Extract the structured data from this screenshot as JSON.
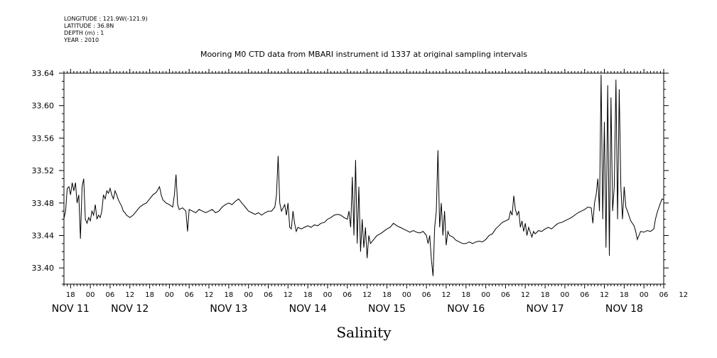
{
  "header": {
    "longitude": "LONGITUDE : 121.9W(-121.9)",
    "latitude": "LATITUDE : 36.8N",
    "depth": "DEPTH (m) : 1",
    "year": "YEAR : 2010"
  },
  "chart_data": {
    "type": "line",
    "title": "Mooring M0 CTD data from MBARI instrument id 1337 at original sampling intervals",
    "xlabel": "Salinity",
    "ylabel": "",
    "xlim_hours": [
      -8,
      174
    ],
    "ylim": [
      33.38,
      33.64
    ],
    "y_ticks": [
      "33.40",
      "33.44",
      "33.48",
      "33.52",
      "33.56",
      "33.60",
      "33.64"
    ],
    "x_hour_labels": [
      "18",
      "00",
      "06",
      "12",
      "18",
      "00",
      "06",
      "12",
      "18",
      "00",
      "06",
      "12",
      "18",
      "00",
      "06",
      "12",
      "18",
      "00",
      "06",
      "12",
      "18",
      "00",
      "06",
      "12",
      "18",
      "00",
      "06",
      "12",
      "18",
      "00",
      "06",
      "12"
    ],
    "x_day_labels": [
      {
        "label": "NOV 11",
        "hour": -6
      },
      {
        "label": "NOV 12",
        "hour": 12
      },
      {
        "label": "NOV 13",
        "hour": 42
      },
      {
        "label": "NOV 14",
        "hour": 66
      },
      {
        "label": "NOV 15",
        "hour": 90
      },
      {
        "label": "NOV 16",
        "hour": 114
      },
      {
        "label": "NOV 17",
        "hour": 138
      },
      {
        "label": "NOV 18",
        "hour": 162
      }
    ],
    "grid": false,
    "series": [
      {
        "x_unit": "hours since Nov 12 00:00",
        "points": [
          [
            -8,
            33.461
          ],
          [
            -7.5,
            33.47
          ],
          [
            -7,
            33.498
          ],
          [
            -6.5,
            33.5
          ],
          [
            -6,
            33.49
          ],
          [
            -5.5,
            33.505
          ],
          [
            -5,
            33.495
          ],
          [
            -4.5,
            33.505
          ],
          [
            -4,
            33.48
          ],
          [
            -3.5,
            33.49
          ],
          [
            -3,
            33.436
          ],
          [
            -2.5,
            33.5
          ],
          [
            -2,
            33.51
          ],
          [
            -1.5,
            33.46
          ],
          [
            -1,
            33.455
          ],
          [
            -0.5,
            33.462
          ],
          [
            0,
            33.458
          ],
          [
            0.5,
            33.47
          ],
          [
            1,
            33.465
          ],
          [
            1.5,
            33.478
          ],
          [
            2,
            33.46
          ],
          [
            2.5,
            33.465
          ],
          [
            3,
            33.462
          ],
          [
            3.5,
            33.47
          ],
          [
            4,
            33.49
          ],
          [
            4.5,
            33.485
          ],
          [
            5,
            33.495
          ],
          [
            5.5,
            33.492
          ],
          [
            6,
            33.498
          ],
          [
            6.5,
            33.49
          ],
          [
            7,
            33.485
          ],
          [
            7.5,
            33.495
          ],
          [
            8,
            33.49
          ],
          [
            8.5,
            33.484
          ],
          [
            9,
            33.48
          ],
          [
            9.5,
            33.476
          ],
          [
            10,
            33.47
          ],
          [
            10.5,
            33.468
          ],
          [
            11,
            33.465
          ],
          [
            12,
            33.462
          ],
          [
            13,
            33.465
          ],
          [
            14,
            33.47
          ],
          [
            15,
            33.475
          ],
          [
            16,
            33.478
          ],
          [
            17,
            33.48
          ],
          [
            18,
            33.485
          ],
          [
            19,
            33.49
          ],
          [
            20,
            33.493
          ],
          [
            21,
            33.5
          ],
          [
            21.5,
            33.49
          ],
          [
            22,
            33.484
          ],
          [
            23,
            33.48
          ],
          [
            24,
            33.478
          ],
          [
            25,
            33.475
          ],
          [
            25.5,
            33.49
          ],
          [
            26,
            33.515
          ],
          [
            26.5,
            33.478
          ],
          [
            27,
            33.472
          ],
          [
            28,
            33.474
          ],
          [
            29,
            33.47
          ],
          [
            29.5,
            33.445
          ],
          [
            30,
            33.472
          ],
          [
            31,
            33.47
          ],
          [
            32,
            33.468
          ],
          [
            33,
            33.472
          ],
          [
            34,
            33.47
          ],
          [
            35,
            33.468
          ],
          [
            36,
            33.47
          ],
          [
            37,
            33.472
          ],
          [
            38,
            33.468
          ],
          [
            39,
            33.47
          ],
          [
            40,
            33.475
          ],
          [
            41,
            33.478
          ],
          [
            42,
            33.48
          ],
          [
            43,
            33.478
          ],
          [
            44,
            33.482
          ],
          [
            45,
            33.485
          ],
          [
            46,
            33.48
          ],
          [
            47,
            33.475
          ],
          [
            48,
            33.47
          ],
          [
            49,
            33.468
          ],
          [
            50,
            33.466
          ],
          [
            51,
            33.468
          ],
          [
            52,
            33.465
          ],
          [
            53,
            33.468
          ],
          [
            54,
            33.47
          ],
          [
            55,
            33.47
          ],
          [
            56,
            33.475
          ],
          [
            56.5,
            33.49
          ],
          [
            57,
            33.538
          ],
          [
            57.5,
            33.48
          ],
          [
            58,
            33.47
          ],
          [
            59,
            33.478
          ],
          [
            59.5,
            33.465
          ],
          [
            60,
            33.48
          ],
          [
            60.5,
            33.45
          ],
          [
            61,
            33.448
          ],
          [
            61.5,
            33.47
          ],
          [
            62,
            33.455
          ],
          [
            62.5,
            33.445
          ],
          [
            63,
            33.45
          ],
          [
            64,
            33.448
          ],
          [
            65,
            33.45
          ],
          [
            66,
            33.452
          ],
          [
            67,
            33.45
          ],
          [
            68,
            33.453
          ],
          [
            69,
            33.452
          ],
          [
            70,
            33.455
          ],
          [
            71,
            33.456
          ],
          [
            72,
            33.46
          ],
          [
            73,
            33.462
          ],
          [
            74,
            33.465
          ],
          [
            75,
            33.466
          ],
          [
            76,
            33.465
          ],
          [
            77,
            33.462
          ],
          [
            78,
            33.46
          ],
          [
            78.5,
            33.47
          ],
          [
            79,
            33.45
          ],
          [
            79.5,
            33.512
          ],
          [
            80,
            33.44
          ],
          [
            80.5,
            33.533
          ],
          [
            81,
            33.43
          ],
          [
            81.5,
            33.5
          ],
          [
            82,
            33.42
          ],
          [
            82.5,
            33.46
          ],
          [
            83,
            33.425
          ],
          [
            83.5,
            33.45
          ],
          [
            84,
            33.412
          ],
          [
            84.5,
            33.44
          ],
          [
            85,
            33.43
          ],
          [
            86,
            33.435
          ],
          [
            87,
            33.44
          ],
          [
            88,
            33.442
          ],
          [
            89,
            33.445
          ],
          [
            90,
            33.448
          ],
          [
            91,
            33.45
          ],
          [
            92,
            33.455
          ],
          [
            93,
            33.452
          ],
          [
            94,
            33.45
          ],
          [
            95,
            33.448
          ],
          [
            96,
            33.446
          ],
          [
            97,
            33.444
          ],
          [
            98,
            33.446
          ],
          [
            99,
            33.444
          ],
          [
            100,
            33.443
          ],
          [
            101,
            33.445
          ],
          [
            102,
            33.44
          ],
          [
            102.5,
            33.43
          ],
          [
            103,
            33.44
          ],
          [
            103.5,
            33.41
          ],
          [
            104,
            33.39
          ],
          [
            104.5,
            33.45
          ],
          [
            105,
            33.47
          ],
          [
            105.5,
            33.545
          ],
          [
            106,
            33.45
          ],
          [
            106.5,
            33.48
          ],
          [
            107,
            33.44
          ],
          [
            107.5,
            33.47
          ],
          [
            108,
            33.428
          ],
          [
            108.5,
            33.445
          ],
          [
            109,
            33.44
          ],
          [
            110,
            33.438
          ],
          [
            111,
            33.434
          ],
          [
            112,
            33.432
          ],
          [
            113,
            33.43
          ],
          [
            114,
            33.43
          ],
          [
            115,
            33.432
          ],
          [
            116,
            33.43
          ],
          [
            117,
            33.432
          ],
          [
            118,
            33.433
          ],
          [
            119,
            33.432
          ],
          [
            120,
            33.435
          ],
          [
            121,
            33.44
          ],
          [
            122,
            33.442
          ],
          [
            123,
            33.448
          ],
          [
            124,
            33.452
          ],
          [
            125,
            33.456
          ],
          [
            126,
            33.458
          ],
          [
            127,
            33.46
          ],
          [
            127.5,
            33.47
          ],
          [
            128,
            33.465
          ],
          [
            128.5,
            33.489
          ],
          [
            129,
            33.472
          ],
          [
            129.5,
            33.465
          ],
          [
            130,
            33.47
          ],
          [
            130.5,
            33.45
          ],
          [
            131,
            33.458
          ],
          [
            131.5,
            33.445
          ],
          [
            132,
            33.455
          ],
          [
            132.5,
            33.44
          ],
          [
            133,
            33.45
          ],
          [
            134,
            33.438
          ],
          [
            134.5,
            33.445
          ],
          [
            135,
            33.442
          ],
          [
            136,
            33.446
          ],
          [
            137,
            33.445
          ],
          [
            138,
            33.448
          ],
          [
            139,
            33.45
          ],
          [
            140,
            33.448
          ],
          [
            141,
            33.452
          ],
          [
            142,
            33.455
          ],
          [
            143,
            33.456
          ],
          [
            144,
            33.458
          ],
          [
            145,
            33.46
          ],
          [
            146,
            33.462
          ],
          [
            147,
            33.465
          ],
          [
            148,
            33.468
          ],
          [
            149,
            33.47
          ],
          [
            150,
            33.472
          ],
          [
            151,
            33.475
          ],
          [
            152,
            33.474
          ],
          [
            152.5,
            33.455
          ],
          [
            153,
            33.48
          ],
          [
            153.5,
            33.49
          ],
          [
            154,
            33.51
          ],
          [
            154.5,
            33.47
          ],
          [
            155,
            33.638
          ],
          [
            155.5,
            33.46
          ],
          [
            156,
            33.58
          ],
          [
            156.5,
            33.425
          ],
          [
            157,
            33.625
          ],
          [
            157.5,
            33.415
          ],
          [
            158,
            33.61
          ],
          [
            158.5,
            33.47
          ],
          [
            159,
            33.5
          ],
          [
            159.5,
            33.632
          ],
          [
            160,
            33.46
          ],
          [
            160.5,
            33.62
          ],
          [
            161,
            33.5
          ],
          [
            161.5,
            33.46
          ],
          [
            162,
            33.5
          ],
          [
            162.5,
            33.475
          ],
          [
            163,
            33.47
          ],
          [
            164,
            33.458
          ],
          [
            165,
            33.452
          ],
          [
            165.5,
            33.445
          ],
          [
            166,
            33.435
          ],
          [
            166.5,
            33.44
          ],
          [
            167,
            33.445
          ],
          [
            168,
            33.444
          ],
          [
            169,
            33.446
          ],
          [
            170,
            33.445
          ],
          [
            171,
            33.448
          ],
          [
            171.5,
            33.46
          ],
          [
            172,
            33.468
          ],
          [
            172.5,
            33.474
          ],
          [
            173,
            33.48
          ],
          [
            173.5,
            33.485
          ],
          [
            174,
            33.484
          ]
        ]
      }
    ]
  }
}
